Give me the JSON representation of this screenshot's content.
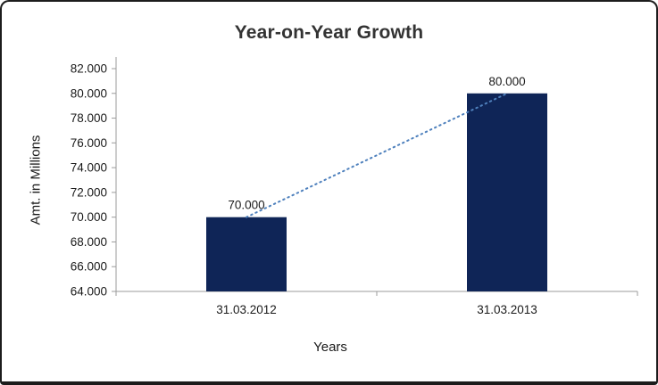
{
  "chart_data": {
    "type": "bar",
    "title": "Year-on-Year Growth",
    "xlabel": "Years",
    "ylabel": "Amt. in Millions",
    "categories": [
      "31.03.2012",
      "31.03.2013"
    ],
    "values": [
      70,
      80
    ],
    "data_labels": [
      "70.000",
      "80.000"
    ],
    "ylim": [
      64,
      82
    ],
    "ytick_step": 2,
    "ytick_labels": [
      "64.000",
      "66.000",
      "68.000",
      "70.000",
      "72.000",
      "74.000",
      "76.000",
      "78.000",
      "80.000",
      "82.000"
    ],
    "grid": false,
    "legend": "none",
    "bar_color": "#0f2557",
    "trendline": {
      "type": "linear",
      "style": "dotted",
      "color": "#4f81bd"
    },
    "axis_color": "#9b9b9b",
    "text_color": "#1a1a1a",
    "title_color": "#333333"
  }
}
